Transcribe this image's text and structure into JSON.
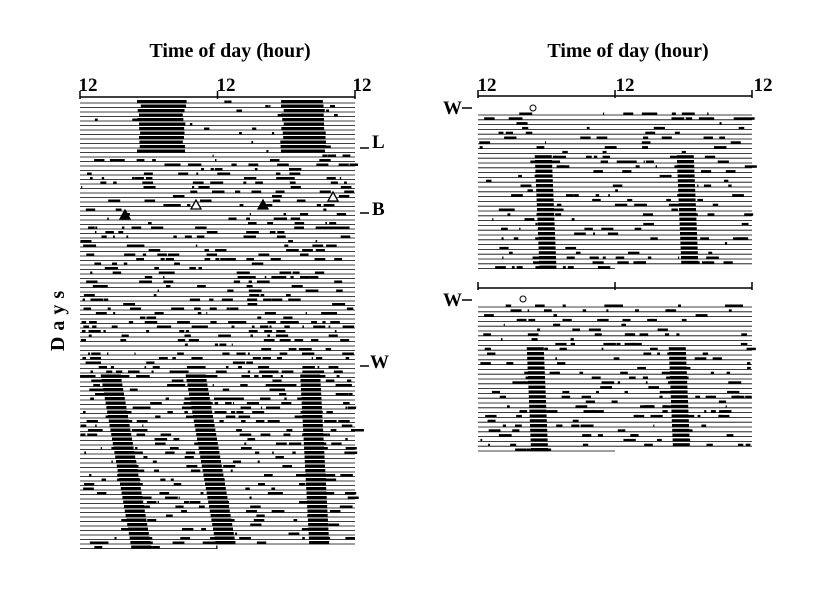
{
  "left_panel": {
    "title": "Time of day (hour)",
    "ticks": [
      "12",
      "12",
      "12"
    ],
    "y_label": "Days",
    "markers": [
      "L",
      "B",
      "W"
    ]
  },
  "right_panel": {
    "title": "Time of day (hour)",
    "ticks": [
      "12",
      "12",
      "12"
    ],
    "markers": [
      "W",
      "W"
    ]
  }
}
